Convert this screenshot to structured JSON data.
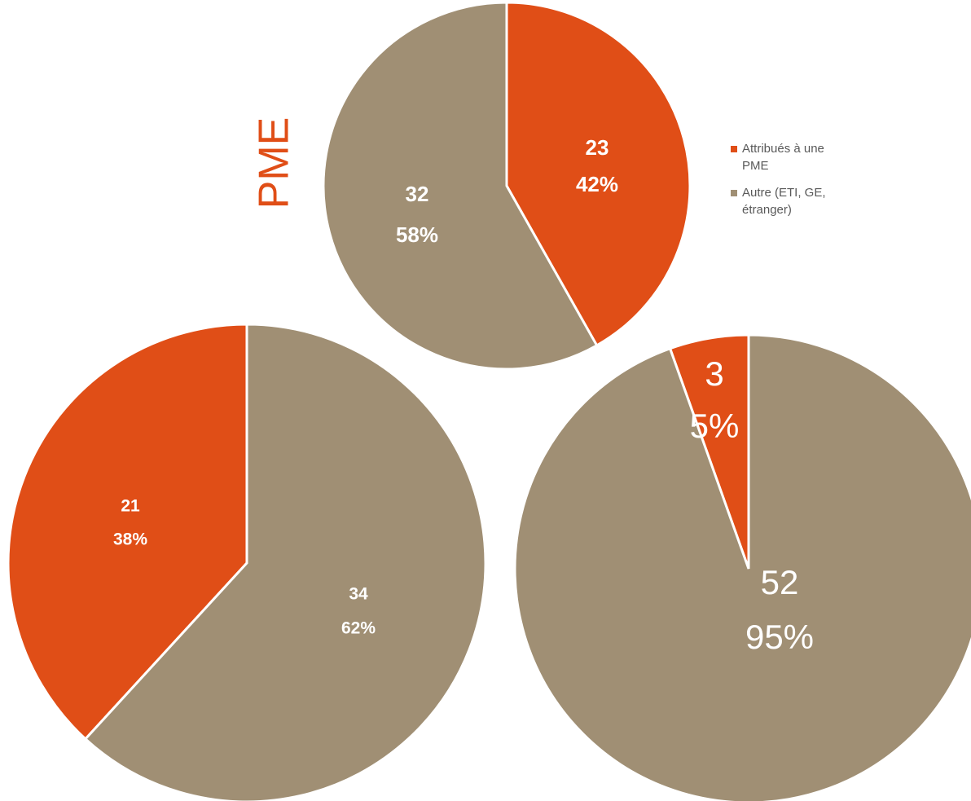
{
  "chart_data": [
    {
      "type": "pie",
      "title": "PME",
      "categories": [
        "Attribués à une PME",
        "Autre (ETI, GE, étranger)"
      ],
      "values": [
        23,
        32
      ],
      "percent_labels": [
        "42%",
        "58%"
      ],
      "colors": [
        "#e04e17",
        "#a08f74"
      ],
      "legend": "right"
    },
    {
      "type": "pie",
      "values": [
        21,
        34
      ],
      "percent_labels": [
        "38%",
        "62%"
      ],
      "colors": [
        "#e04e17",
        "#a08f74"
      ],
      "counterclock": true
    },
    {
      "type": "pie",
      "values": [
        3,
        52
      ],
      "percent_labels": [
        "5%",
        "95%"
      ],
      "colors": [
        "#e04e17",
        "#a08f74"
      ],
      "counterclock": true
    }
  ]
}
